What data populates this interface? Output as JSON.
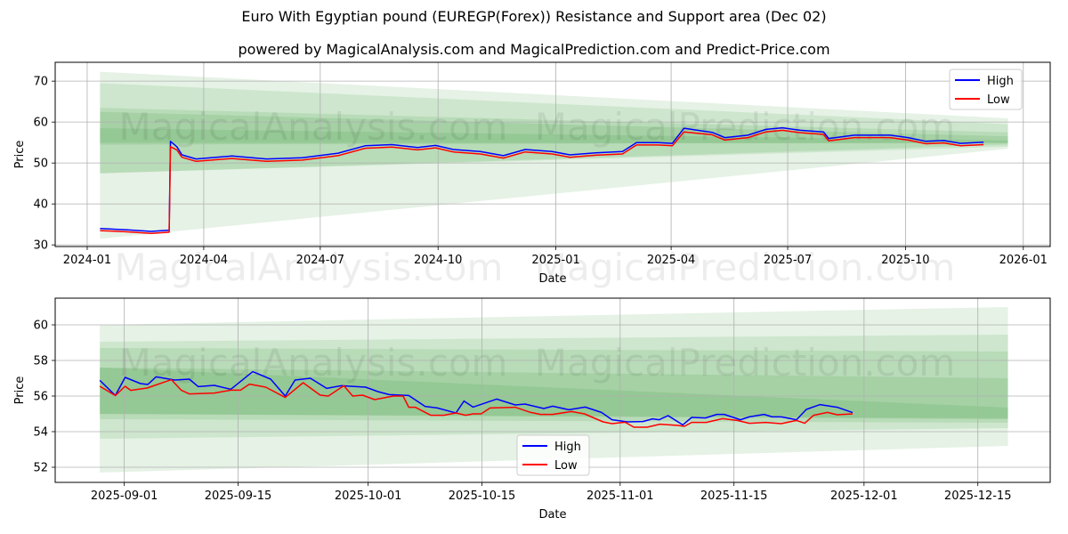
{
  "title": "Euro With Egyptian pound (EUREGP(Forex)) Resistance and Support area (Dec 02)",
  "subtitle": "powered by MagicalAnalysis.com and MagicalPrediction.com and Predict-Price.com",
  "watermarks": [
    "MagicalAnalysis.com",
    "MagicalPrediction.com"
  ],
  "colors": {
    "high": "#0000ff",
    "low": "#ff0000",
    "band": "#008000",
    "grid": "#b0b0b0"
  },
  "chart_data": [
    {
      "type": "line",
      "name": "full-history",
      "xlabel": "Date",
      "ylabel": "Price",
      "x_origin": "2024-01-01",
      "x_unit": "days since x_origin",
      "xlim": [
        -25,
        752
      ],
      "ylim": [
        29.6,
        74.6
      ],
      "grid": true,
      "legend": "upper-right",
      "xticks": [
        {
          "v": 0,
          "label": "2024-01"
        },
        {
          "v": 91,
          "label": "2024-04"
        },
        {
          "v": 182,
          "label": "2024-07"
        },
        {
          "v": 274,
          "label": "2024-10"
        },
        {
          "v": 366,
          "label": "2025-01"
        },
        {
          "v": 456,
          "label": "2025-04"
        },
        {
          "v": 547,
          "label": "2025-07"
        },
        {
          "v": 639,
          "label": "2025-10"
        },
        {
          "v": 731,
          "label": "2026-01"
        }
      ],
      "yticks": [
        30,
        40,
        50,
        60,
        70
      ],
      "bands_x": [
        10,
        719
      ],
      "bands": [
        [
          72.3,
          31.5,
          60.9,
          53.5
        ],
        [
          69.5,
          47.5,
          59.5,
          54.0
        ],
        [
          63.5,
          47.5,
          57.5,
          54.5
        ],
        [
          62.5,
          55.0,
          56.5,
          54.8
        ],
        [
          58.5,
          54.5,
          55.5,
          55.0
        ]
      ],
      "series": [
        {
          "name": "High",
          "points": [
            [
              10,
              34.0
            ],
            [
              30,
              33.7
            ],
            [
              50,
              33.3
            ],
            [
              64,
              33.6
            ],
            [
              65,
              55.3
            ],
            [
              70,
              54.0
            ],
            [
              74,
              52.0
            ],
            [
              85,
              51.0
            ],
            [
              113,
              51.7
            ],
            [
              140,
              51.0
            ],
            [
              168,
              51.3
            ],
            [
              196,
              52.4
            ],
            [
              217,
              54.2
            ],
            [
              238,
              54.5
            ],
            [
              258,
              53.8
            ],
            [
              272,
              54.3
            ],
            [
              286,
              53.3
            ],
            [
              307,
              52.8
            ],
            [
              325,
              51.8
            ],
            [
              342,
              53.3
            ],
            [
              363,
              52.8
            ],
            [
              377,
              52.0
            ],
            [
              397,
              52.5
            ],
            [
              418,
              52.8
            ],
            [
              429,
              55.0
            ],
            [
              446,
              55.0
            ],
            [
              457,
              54.8
            ],
            [
              466,
              58.5
            ],
            [
              488,
              57.5
            ],
            [
              498,
              56.2
            ],
            [
              516,
              56.8
            ],
            [
              530,
              58.2
            ],
            [
              543,
              58.6
            ],
            [
              557,
              58.0
            ],
            [
              575,
              57.6
            ],
            [
              579,
              56.0
            ],
            [
              599,
              56.8
            ],
            [
              627,
              56.8
            ],
            [
              641,
              56.2
            ],
            [
              655,
              55.3
            ],
            [
              669,
              55.5
            ],
            [
              682,
              54.8
            ],
            [
              700,
              55.1
            ]
          ]
        },
        {
          "name": "Low",
          "points": [
            [
              10,
              33.5
            ],
            [
              30,
              33.2
            ],
            [
              50,
              32.8
            ],
            [
              64,
              33.1
            ],
            [
              65,
              54.0
            ],
            [
              70,
              53.2
            ],
            [
              74,
              51.4
            ],
            [
              85,
              50.4
            ],
            [
              113,
              51.1
            ],
            [
              140,
              50.4
            ],
            [
              168,
              50.7
            ],
            [
              196,
              51.8
            ],
            [
              217,
              53.6
            ],
            [
              238,
              53.9
            ],
            [
              258,
              53.2
            ],
            [
              272,
              53.7
            ],
            [
              286,
              52.7
            ],
            [
              307,
              52.2
            ],
            [
              325,
              51.2
            ],
            [
              342,
              52.7
            ],
            [
              363,
              52.2
            ],
            [
              377,
              51.4
            ],
            [
              397,
              51.9
            ],
            [
              418,
              52.2
            ],
            [
              429,
              54.4
            ],
            [
              446,
              54.4
            ],
            [
              457,
              54.2
            ],
            [
              466,
              57.6
            ],
            [
              488,
              56.9
            ],
            [
              498,
              55.6
            ],
            [
              516,
              56.2
            ],
            [
              530,
              57.6
            ],
            [
              543,
              58.0
            ],
            [
              557,
              57.4
            ],
            [
              575,
              57.0
            ],
            [
              579,
              55.4
            ],
            [
              599,
              56.2
            ],
            [
              627,
              56.2
            ],
            [
              641,
              55.6
            ],
            [
              655,
              54.7
            ],
            [
              669,
              54.9
            ],
            [
              682,
              54.2
            ],
            [
              700,
              54.5
            ]
          ]
        }
      ]
    },
    {
      "type": "line",
      "name": "recent",
      "xlabel": "Date",
      "ylabel": "Price",
      "x_origin": "2025-09-01",
      "x_unit": "days since x_origin",
      "xlim": [
        -8.5,
        113.9
      ],
      "ylim": [
        51.15,
        61.5
      ],
      "grid": true,
      "legend": "lower-center",
      "xticks": [
        {
          "v": 0,
          "label": "2025-09-01"
        },
        {
          "v": 14,
          "label": "2025-09-15"
        },
        {
          "v": 30,
          "label": "2025-10-01"
        },
        {
          "v": 44,
          "label": "2025-10-15"
        },
        {
          "v": 61,
          "label": "2025-11-01"
        },
        {
          "v": 75,
          "label": "2025-11-15"
        },
        {
          "v": 91,
          "label": "2025-12-01"
        },
        {
          "v": 105,
          "label": "2025-12-15"
        }
      ],
      "yticks": [
        52,
        54,
        56,
        58,
        60
      ],
      "bands_x": [
        -3,
        108.7
      ],
      "bands": [
        [
          60.0,
          51.7,
          61.0,
          53.2
        ],
        [
          59.05,
          53.6,
          59.45,
          54.2
        ],
        [
          58.7,
          54.7,
          58.5,
          54.5
        ],
        [
          57.6,
          55.0,
          57.0,
          54.75
        ],
        [
          57.6,
          55.0,
          55.35,
          54.7
        ]
      ],
      "series": [
        {
          "name": "High",
          "points": [
            [
              -3.0,
              56.88
            ],
            [
              -1.1,
              56.03
            ],
            [
              0.1,
              57.05
            ],
            [
              2.0,
              56.7
            ],
            [
              2.9,
              56.65
            ],
            [
              3.9,
              57.08
            ],
            [
              6.2,
              56.9
            ],
            [
              8.0,
              56.95
            ],
            [
              9.1,
              56.53
            ],
            [
              11.1,
              56.6
            ],
            [
              13.1,
              56.38
            ],
            [
              15.8,
              57.37
            ],
            [
              18.0,
              56.95
            ],
            [
              19.8,
              56.0
            ],
            [
              21.0,
              56.9
            ],
            [
              22.9,
              57.0
            ],
            [
              24.9,
              56.43
            ],
            [
              26.7,
              56.58
            ],
            [
              29.7,
              56.5
            ],
            [
              31.2,
              56.25
            ],
            [
              32.6,
              56.08
            ],
            [
              35.0,
              56.03
            ],
            [
              37.0,
              55.42
            ],
            [
              38.5,
              55.33
            ],
            [
              40.8,
              55.05
            ],
            [
              41.8,
              55.72
            ],
            [
              42.9,
              55.38
            ],
            [
              45.8,
              55.83
            ],
            [
              48.1,
              55.5
            ],
            [
              49.3,
              55.55
            ],
            [
              51.6,
              55.3
            ],
            [
              52.7,
              55.43
            ],
            [
              54.7,
              55.23
            ],
            [
              56.7,
              55.38
            ],
            [
              58.7,
              55.08
            ],
            [
              60.0,
              54.67
            ],
            [
              61.9,
              54.55
            ],
            [
              63.8,
              54.57
            ],
            [
              65.0,
              54.72
            ],
            [
              65.8,
              54.67
            ],
            [
              66.9,
              54.9
            ],
            [
              68.7,
              54.38
            ],
            [
              69.8,
              54.8
            ],
            [
              71.5,
              54.77
            ],
            [
              72.9,
              54.97
            ],
            [
              73.8,
              54.97
            ],
            [
              75.8,
              54.67
            ],
            [
              76.9,
              54.83
            ],
            [
              78.7,
              54.97
            ],
            [
              79.7,
              54.83
            ],
            [
              80.8,
              54.83
            ],
            [
              82.7,
              54.67
            ],
            [
              83.9,
              55.25
            ],
            [
              85.6,
              55.52
            ],
            [
              87.7,
              55.37
            ],
            [
              89.6,
              55.07
            ]
          ]
        },
        {
          "name": "Low",
          "points": [
            [
              -3.0,
              56.55
            ],
            [
              -1.1,
              56.03
            ],
            [
              0.1,
              56.55
            ],
            [
              0.8,
              56.32
            ],
            [
              2.8,
              56.45
            ],
            [
              5.8,
              56.92
            ],
            [
              7.0,
              56.33
            ],
            [
              8.0,
              56.12
            ],
            [
              11.1,
              56.17
            ],
            [
              13.1,
              56.33
            ],
            [
              14.3,
              56.33
            ],
            [
              15.4,
              56.67
            ],
            [
              17.4,
              56.5
            ],
            [
              19.8,
              55.92
            ],
            [
              22.0,
              56.75
            ],
            [
              24.1,
              56.05
            ],
            [
              25.1,
              56.0
            ],
            [
              27.0,
              56.58
            ],
            [
              28.1,
              56.0
            ],
            [
              29.3,
              56.05
            ],
            [
              30.8,
              55.8
            ],
            [
              33.1,
              56.0
            ],
            [
              34.3,
              56.0
            ],
            [
              35.0,
              55.37
            ],
            [
              35.8,
              55.37
            ],
            [
              37.7,
              54.92
            ],
            [
              39.3,
              54.92
            ],
            [
              40.8,
              55.05
            ],
            [
              42.0,
              54.92
            ],
            [
              42.9,
              55.0
            ],
            [
              43.9,
              55.0
            ],
            [
              45.0,
              55.33
            ],
            [
              48.1,
              55.37
            ],
            [
              50.0,
              55.08
            ],
            [
              51.2,
              54.97
            ],
            [
              52.7,
              54.97
            ],
            [
              55.0,
              55.13
            ],
            [
              56.6,
              55.0
            ],
            [
              58.9,
              54.55
            ],
            [
              60.0,
              54.45
            ],
            [
              61.6,
              54.53
            ],
            [
              62.7,
              54.25
            ],
            [
              64.3,
              54.25
            ],
            [
              65.9,
              54.42
            ],
            [
              68.1,
              54.35
            ],
            [
              68.9,
              54.3
            ],
            [
              69.8,
              54.52
            ],
            [
              71.6,
              54.52
            ],
            [
              73.6,
              54.73
            ],
            [
              75.4,
              54.63
            ],
            [
              76.9,
              54.47
            ],
            [
              78.9,
              54.52
            ],
            [
              80.8,
              54.45
            ],
            [
              82.7,
              54.63
            ],
            [
              83.7,
              54.47
            ],
            [
              84.8,
              54.92
            ],
            [
              86.5,
              55.08
            ],
            [
              87.7,
              54.95
            ],
            [
              89.6,
              55.0
            ]
          ]
        }
      ]
    }
  ]
}
